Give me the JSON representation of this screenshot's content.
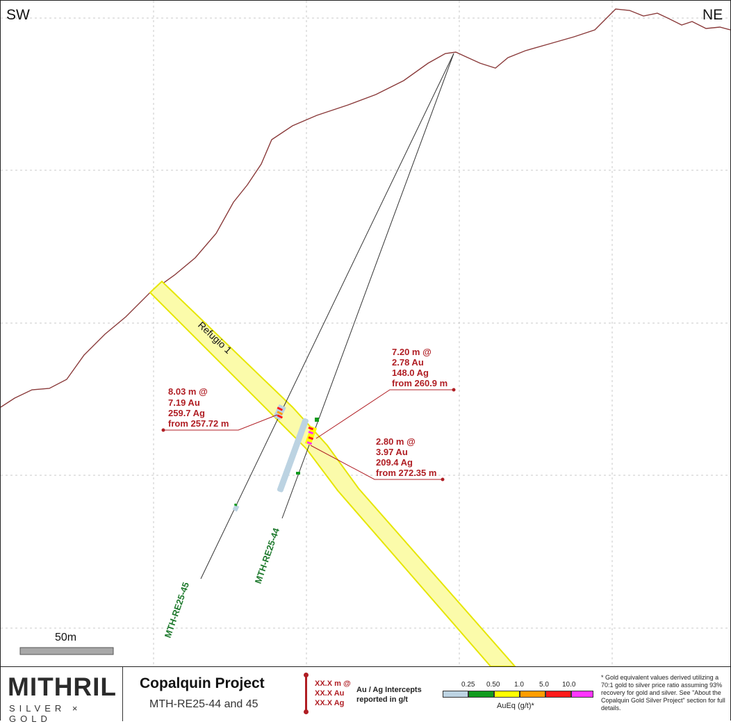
{
  "section": {
    "direction_left": "SW",
    "direction_right": "NE",
    "vein_label": "Refugio 1",
    "scale_label": "50m",
    "holes": [
      {
        "id": "MTH-RE25-45"
      },
      {
        "id": "MTH-RE25-44"
      }
    ],
    "intercepts": [
      {
        "lines": [
          "8.03 m @",
          "7.19 Au",
          "259.7 Ag",
          "from 257.72 m"
        ]
      },
      {
        "lines": [
          "7.20 m @",
          "2.78 Au",
          "148.0 Ag",
          "from 260.9 m"
        ]
      },
      {
        "lines": [
          "2.80 m @",
          "3.97 Au",
          "209.4 Ag",
          "from 272.35 m"
        ]
      }
    ]
  },
  "footer": {
    "logo_word": "MITHRIL",
    "logo_sub": "SILVER × GOLD",
    "title": "Copalquin Project",
    "subtitle": "MTH-RE25-44 and 45",
    "legend_examples": [
      "XX.X m @",
      "XX.X Au",
      "XX.X Ag"
    ],
    "legend_desc": "Au / Ag Intercepts reported in g/t",
    "scale_ticks": [
      "0.25",
      "0.50",
      "1.0",
      "5.0",
      "10.0"
    ],
    "scale_colors": [
      "#bcd3e2",
      "#119b1e",
      "#ffff00",
      "#ff9d00",
      "#ff1a1a",
      "#ff33ff"
    ],
    "scale_label": "AuEq (g/t)*",
    "note": "* Gold equivalent values derived utilizing a 70:1 gold to silver price ratio assuming 93% recovery for gold and silver. See \"About the Copalquin Gold Silver Project\" section for full details."
  },
  "colors": {
    "topo": "#8a3a3a",
    "vein_fill": "#fbfbaa",
    "vein_edge": "#e6e600",
    "intercept": "#b01e24",
    "hole_label": "#1f7a2e"
  }
}
